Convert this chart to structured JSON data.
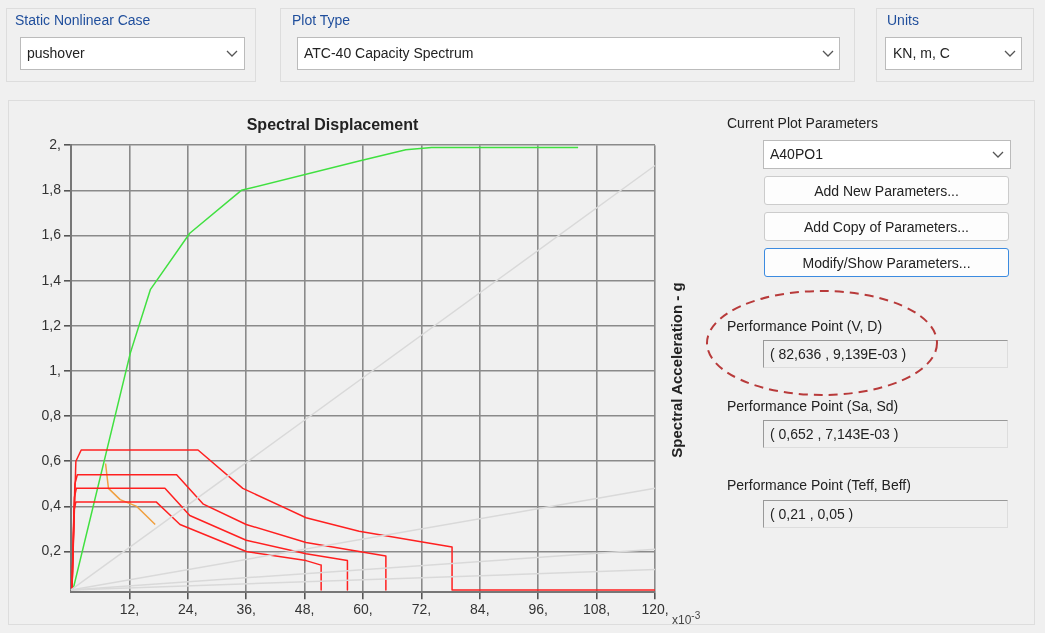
{
  "chart_data": {
    "type": "line",
    "xlabel": "Spectral Displacement",
    "ylabel": "Spectral Acceleration - g",
    "xlim": [
      0,
      120
    ],
    "ylim": [
      0.02,
      2
    ],
    "xticks": [
      {
        "value": 12,
        "label": "12,"
      },
      {
        "value": 24,
        "label": "24,"
      },
      {
        "value": 36,
        "label": "36,"
      },
      {
        "value": 48,
        "label": "48,"
      },
      {
        "value": 60,
        "label": "60,"
      },
      {
        "value": 72,
        "label": "72,"
      },
      {
        "value": 84,
        "label": "84,"
      },
      {
        "value": 96,
        "label": "96,"
      },
      {
        "value": 108,
        "label": "108,"
      },
      {
        "value": 120,
        "label": "120,"
      }
    ],
    "yticks": [
      {
        "value": 0.2,
        "label": "0,2"
      },
      {
        "value": 0.4,
        "label": "0,4"
      },
      {
        "value": 0.6,
        "label": "0,6"
      },
      {
        "value": 0.8,
        "label": "0,8"
      },
      {
        "value": 1,
        "label": "1,"
      },
      {
        "value": 1.2,
        "label": "1,2"
      },
      {
        "value": 1.4,
        "label": "1,4"
      },
      {
        "value": 1.6,
        "label": "1,6"
      },
      {
        "value": 1.8,
        "label": "1,8"
      },
      {
        "value": 2,
        "label": "2,"
      }
    ],
    "grid": true,
    "marker": "none",
    "line_style": "solid",
    "series": [
      {
        "color": "#d9d9d9",
        "x": [
          0,
          120
        ],
        "values": [
          0.03,
          1.91
        ]
      },
      {
        "color": "#d9d9d9",
        "x": [
          0,
          120
        ],
        "values": [
          0.03,
          0.48
        ]
      },
      {
        "color": "#d9d9d9",
        "x": [
          0,
          120
        ],
        "values": [
          0.03,
          0.21
        ]
      },
      {
        "color": "#d9d9d9",
        "x": [
          0,
          120
        ],
        "values": [
          0.03,
          0.12
        ]
      },
      {
        "color": "#ff2020",
        "x": [
          0.2,
          1,
          2.1,
          26.1,
          35.3,
          48.3,
          59.2,
          72.8,
          78.3,
          78.3,
          120
        ],
        "values": [
          0.03,
          0.6,
          0.65,
          0.65,
          0.48,
          0.35,
          0.29,
          0.24,
          0.22,
          0.03,
          0.03
        ]
      },
      {
        "color": "#ff2020",
        "x": [
          0.2,
          0.8,
          1.3,
          21.7,
          27.2,
          36,
          48.3,
          59.2,
          64.7,
          64.7
        ],
        "values": [
          0.03,
          0.5,
          0.54,
          0.54,
          0.41,
          0.32,
          0.24,
          0.2,
          0.18,
          0.03
        ]
      },
      {
        "color": "#ff2020",
        "x": [
          0.2,
          0.7,
          1.1,
          19.3,
          24.4,
          36,
          48.3,
          56.8,
          56.8
        ],
        "values": [
          0.03,
          0.44,
          0.48,
          0.48,
          0.36,
          0.25,
          0.19,
          0.16,
          0.03
        ]
      },
      {
        "color": "#ff2020",
        "x": [
          0.2,
          0.6,
          1,
          17.5,
          22.4,
          36,
          48.3,
          51.4,
          51.4
        ],
        "values": [
          0.03,
          0.38,
          0.42,
          0.42,
          0.32,
          0.2,
          0.16,
          0.14,
          0.03
        ]
      },
      {
        "color": "#f0a040",
        "x": [
          7.1,
          7.7,
          10.1,
          13.5,
          17.3
        ],
        "values": [
          0.59,
          0.48,
          0.43,
          0.4,
          0.32
        ]
      },
      {
        "color": "#40e040",
        "x": [
          0.4,
          12.2,
          16.3,
          24.4,
          35,
          59.2,
          68.8,
          74.1,
          104.2
        ],
        "values": [
          0.03,
          1.08,
          1.36,
          1.61,
          1.8,
          1.93,
          1.98,
          1.99,
          1.99
        ]
      }
    ],
    "annotations": [
      "x10$^{-3}$",
      "Static Nonlinear Case",
      "pushover",
      "Plot Type",
      "ATC-40 Capacity Spectrum",
      "Units",
      "KN, m, C",
      "Current Plot Parameters",
      "A40PO1",
      "Add New Parameters...",
      "Add Copy of Parameters...",
      "Modify/Show Parameters...",
      "Performance Point (V, D)",
      "( 82,636 , 9,139E-03 )",
      "Performance Point (Sa, Sd)",
      "( 0,652 , 7,143E-03 )",
      "Performance Point (Teff, Beff)",
      "( 0,21 , 0,05 )"
    ]
  }
}
